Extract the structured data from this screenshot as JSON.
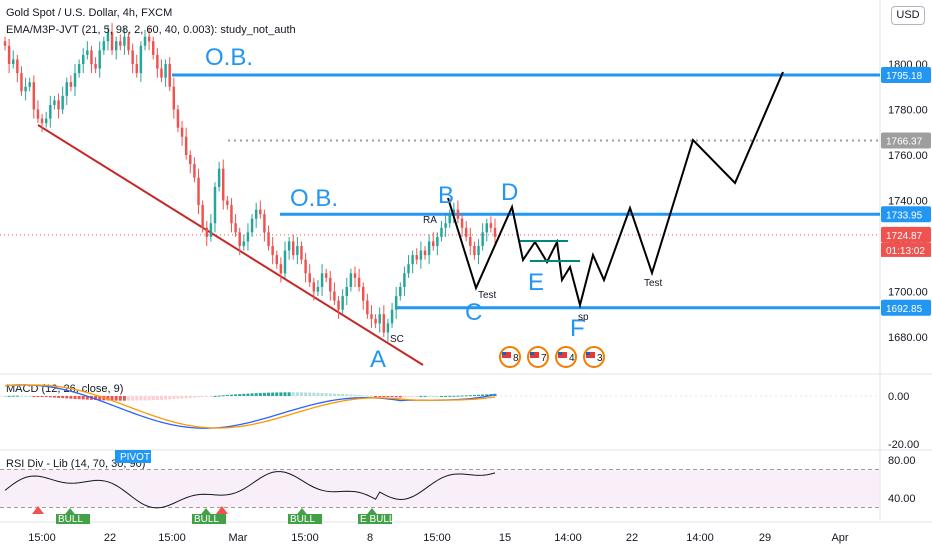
{
  "header": {
    "title": "Gold Spot / U.S. Dollar, 4h, FXCM",
    "indicator": "EMA/M3P-JVT (21, 5, 98, 2, 60, 40, 0.003): study_not_auth",
    "currency_button": "USD"
  },
  "colors": {
    "up": "#26a69a",
    "down": "#ef5350",
    "blue": "#2196f3",
    "red_line": "#c62828",
    "dark": "#131722",
    "teal": "#00897b",
    "grey_label": "#9e9e9e"
  },
  "chart_data": [
    {
      "type": "candlestick",
      "title": "Gold Spot / U.S. Dollar, 4h, FXCM",
      "ylim": [
        1670,
        1815
      ],
      "y_ticks": [
        "1680.00",
        "1700.00",
        "1720.00",
        "1740.00",
        "1760.00",
        "1780.00",
        "1800.00"
      ],
      "x_ticks": [
        "15:00",
        "22",
        "15:00",
        "Mar",
        "15:00",
        "8",
        "15:00",
        "15",
        "14:00",
        "22",
        "14:00",
        "29",
        "Apr"
      ],
      "price_labels": [
        {
          "value": 1795.18,
          "label": "1795.18",
          "color": "#2196f3"
        },
        {
          "value": 1766.37,
          "label": "1766.37",
          "color": "#9e9e9e"
        },
        {
          "value": 1733.95,
          "label": "1733.95",
          "color": "#2196f3"
        },
        {
          "value": 1724.87,
          "label": "1724.87",
          "color": "#ef5350"
        },
        {
          "value": 1692.85,
          "label": "1692.85",
          "color": "#2196f3"
        }
      ],
      "countdown": "01:13:02",
      "close_series": [
        1808,
        1800,
        1802,
        1796,
        1788,
        1790,
        1792,
        1780,
        1776,
        1774,
        1776,
        1782,
        1784,
        1780,
        1786,
        1792,
        1790,
        1796,
        1800,
        1804,
        1806,
        1800,
        1798,
        1806,
        1810,
        1814,
        1806,
        1810,
        1808,
        1812,
        1806,
        1800,
        1796,
        1808,
        1812,
        1810,
        1804,
        1798,
        1794,
        1800,
        1790,
        1780,
        1772,
        1768,
        1760,
        1756,
        1750,
        1738,
        1728,
        1724,
        1730,
        1746,
        1754,
        1740,
        1738,
        1730,
        1726,
        1720,
        1722,
        1726,
        1732,
        1736,
        1734,
        1726,
        1720,
        1716,
        1712,
        1708,
        1718,
        1722,
        1716,
        1720,
        1714,
        1708,
        1704,
        1700,
        1702,
        1708,
        1706,
        1700,
        1696,
        1692,
        1698,
        1702,
        1708,
        1706,
        1702,
        1696,
        1690,
        1688,
        1686,
        1690,
        1682,
        1686,
        1692,
        1698,
        1702,
        1708,
        1712,
        1716,
        1714,
        1718,
        1716,
        1722,
        1720,
        1724,
        1728,
        1730,
        1734,
        1736,
        1732,
        1728,
        1724,
        1720,
        1716,
        1720,
        1726,
        1730,
        1728,
        1724
      ],
      "annotations": [
        {
          "text": "O.B.",
          "kind": "big",
          "value": 1801
        },
        {
          "text": "O.B.",
          "kind": "big",
          "value": 1739
        },
        {
          "text": "B",
          "kind": "big",
          "value": 1739
        },
        {
          "text": "D",
          "kind": "big",
          "value": 1740
        },
        {
          "text": "E",
          "kind": "big",
          "value": 1703
        },
        {
          "text": "C",
          "kind": "big",
          "value": 1686
        },
        {
          "text": "F",
          "kind": "big",
          "value": 1680
        },
        {
          "text": "A",
          "kind": "big",
          "value": 1670
        },
        {
          "text": "RA",
          "kind": "small",
          "value": 1729
        },
        {
          "text": "Test",
          "kind": "small",
          "value": 1696
        },
        {
          "text": "Test",
          "kind": "small",
          "value": 1702
        },
        {
          "text": "SC",
          "kind": "small",
          "value": 1681
        },
        {
          "text": "sp",
          "kind": "small",
          "value": 1688
        }
      ],
      "event_badges": [
        "8",
        "7",
        "4",
        "3"
      ]
    },
    {
      "type": "line",
      "title": "MACD (12, 26, close, 9)",
      "ylim": [
        -22,
        10
      ],
      "y_ticks": [
        "0.00",
        "-20.00"
      ],
      "series": [
        {
          "name": "MACD"
        },
        {
          "name": "Signal"
        }
      ]
    },
    {
      "type": "line",
      "title": "RSI Div - Lib (14, 70, 30, 90)",
      "ylim": [
        25,
        85
      ],
      "y_ticks": [
        "80.00",
        "40.00"
      ],
      "pivot_label": "PIVOT",
      "bull_labels": [
        "BULL",
        "BULL",
        "BULL",
        "E BULL"
      ]
    }
  ]
}
